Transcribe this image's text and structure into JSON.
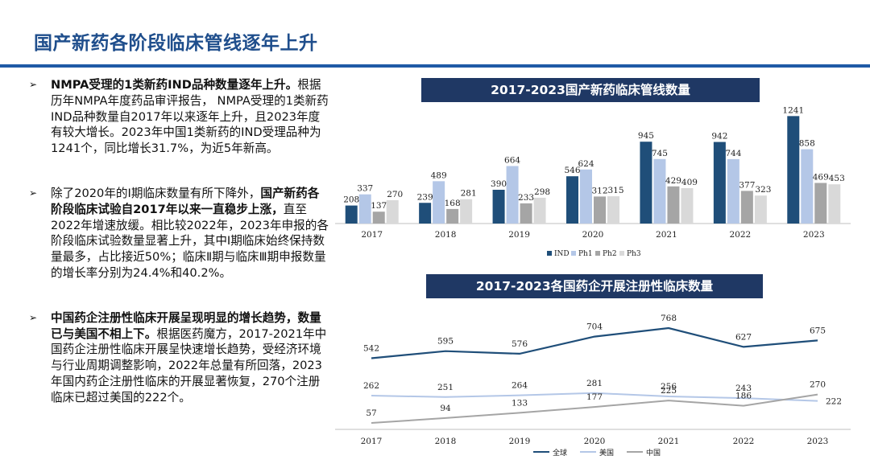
{
  "page": {
    "title": "国产新药各阶段临床管线逐年上升"
  },
  "bullets": [
    {
      "bold": "NMPA受理的1类新药IND品种数量逐年上升。",
      "text": "根据历年NMPA年度药品审评报告， NMPA受理的1类新药IND品种数量自2017年以来逐年上升，且2023年度有较大增长。2023年中国1类新药的IND受理品种为1241个，同比增长31.7%，为近5年新高。",
      "tail_bold": "",
      "tail": ""
    },
    {
      "pre": "除了2020年的Ⅰ期临床数量有所下降外，",
      "bold": "国产新药各阶段临床试验自2017年以来一直稳步上涨，",
      "text": "直至2022年增速放缓。相比较2022年，2023年申报的各阶段临床试验数量显著上升，其中Ⅰ期临床始终保持数量最多，占比接近50%；临床Ⅱ期与临床Ⅲ期申报数量的增长率分别为24.4%和40.2%。"
    },
    {
      "bold": "中国药企注册性临床开展呈现明显的增长趋势，数量已与美国不相上下。",
      "text": "根据医药魔方，2017-2021年中国药企注册性临床开展呈快速增长趋势，受经济环境与行业周期调整影响，2022年总量有所回落，2023年国内药企注册性临床的开展显著恢复，270个注册临床已超过美国的222个。"
    }
  ],
  "chart_data": [
    {
      "type": "bar",
      "title": "2017-2023国产新药临床管线数量",
      "categories": [
        "2017",
        "2018",
        "2019",
        "2020",
        "2021",
        "2022",
        "2023"
      ],
      "series": [
        {
          "name": "IND",
          "color": "#1f4e79",
          "values": [
            208,
            239,
            390,
            546,
            945,
            942,
            1241
          ]
        },
        {
          "name": "Ph1",
          "color": "#b4c7e7",
          "values": [
            337,
            489,
            664,
            624,
            745,
            744,
            858
          ]
        },
        {
          "name": "Ph2",
          "color": "#a5a5a5",
          "values": [
            137,
            168,
            233,
            312,
            429,
            377,
            469
          ]
        },
        {
          "name": "Ph3",
          "color": "#d9d9d9",
          "values": [
            270,
            281,
            298,
            315,
            409,
            323,
            453
          ]
        }
      ],
      "ylim": [
        0,
        1300
      ],
      "xlabel": "",
      "ylabel": "",
      "legend": "bottom"
    },
    {
      "type": "line",
      "title": "2017-2023各国药企开展注册性临床数量",
      "categories": [
        "2017",
        "2018",
        "2019",
        "2020",
        "2021",
        "2022",
        "2023"
      ],
      "series": [
        {
          "name": "全球",
          "color": "#1f4e79",
          "values": [
            542,
            595,
            576,
            704,
            768,
            627,
            675
          ]
        },
        {
          "name": "美国",
          "color": "#b4c7e7",
          "values": [
            262,
            251,
            264,
            281,
            256,
            243,
            222
          ]
        },
        {
          "name": "中国",
          "color": "#a5a5a5",
          "values": [
            57,
            94,
            133,
            177,
            225,
            186,
            270
          ]
        }
      ],
      "ylim": [
        0,
        800
      ],
      "xlabel": "",
      "ylabel": "",
      "legend": "bottom"
    }
  ]
}
